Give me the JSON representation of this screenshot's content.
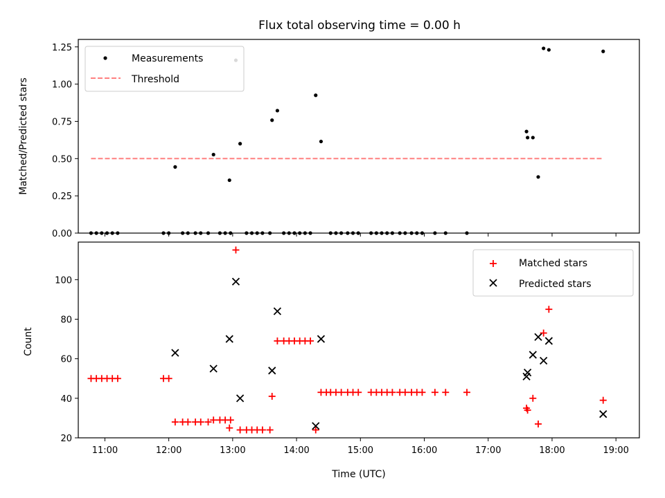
{
  "chart_data": [
    {
      "type": "scatter",
      "title": "Flux total observing time = 0.00 h",
      "xlabel": "",
      "ylabel": "Matched/Predicted stars",
      "x_ticklabels": [
        "11:00",
        "12:00",
        "13:00",
        "14:00",
        "15:00",
        "16:00",
        "17:00",
        "18:00",
        "19:00"
      ],
      "xlim": [
        "10:35",
        "19:22"
      ],
      "ylim": [
        0,
        1.3
      ],
      "y_ticks": [
        0.0,
        0.25,
        0.5,
        0.75,
        1.0,
        1.25
      ],
      "y_ticklabels": [
        "0.00",
        "0.25",
        "0.50",
        "0.75",
        "1.00",
        "1.25"
      ],
      "legend": "top-left",
      "series": [
        {
          "name": "Measurements",
          "color": "#000000",
          "marker": "dot",
          "points": [
            [
              "10:47",
              0
            ],
            [
              "10:52",
              0
            ],
            [
              "10:57",
              0
            ],
            [
              "11:02",
              0
            ],
            [
              "11:07",
              0
            ],
            [
              "11:12",
              0
            ],
            [
              "11:55",
              0
            ],
            [
              "12:00",
              0
            ],
            [
              "12:06",
              0.444
            ],
            [
              "12:13",
              0
            ],
            [
              "12:18",
              0
            ],
            [
              "12:25",
              0
            ],
            [
              "12:30",
              0
            ],
            [
              "12:37",
              0
            ],
            [
              "12:42",
              0.527
            ],
            [
              "12:48",
              0
            ],
            [
              "12:53",
              0
            ],
            [
              "12:58",
              0
            ],
            [
              "12:57",
              0.355
            ],
            [
              "13:03",
              1.16
            ],
            [
              "13:07",
              0.6
            ],
            [
              "13:13",
              0
            ],
            [
              "13:18",
              0
            ],
            [
              "13:23",
              0
            ],
            [
              "13:28",
              0
            ],
            [
              "13:35",
              0
            ],
            [
              "13:37",
              0.758
            ],
            [
              "13:42",
              0.822
            ],
            [
              "13:48",
              0
            ],
            [
              "13:53",
              0
            ],
            [
              "13:58",
              0
            ],
            [
              "14:03",
              0
            ],
            [
              "14:08",
              0
            ],
            [
              "14:13",
              0
            ],
            [
              "14:18",
              0.925
            ],
            [
              "14:23",
              0.615
            ],
            [
              "14:32",
              0
            ],
            [
              "14:37",
              0
            ],
            [
              "14:42",
              0
            ],
            [
              "14:48",
              0
            ],
            [
              "14:53",
              0
            ],
            [
              "14:58",
              0
            ],
            [
              "15:10",
              0
            ],
            [
              "15:15",
              0
            ],
            [
              "15:20",
              0
            ],
            [
              "15:25",
              0
            ],
            [
              "15:30",
              0
            ],
            [
              "15:37",
              0
            ],
            [
              "15:42",
              0
            ],
            [
              "15:48",
              0
            ],
            [
              "15:53",
              0
            ],
            [
              "15:58",
              0
            ],
            [
              "16:10",
              0
            ],
            [
              "16:20",
              0
            ],
            [
              "16:40",
              0
            ],
            [
              "17:36",
              0.682
            ],
            [
              "17:37",
              0.641
            ],
            [
              "17:42",
              0.641
            ],
            [
              "17:47",
              0.377
            ],
            [
              "17:52",
              1.24
            ],
            [
              "17:57",
              1.23
            ],
            [
              "18:48",
              1.22
            ]
          ]
        },
        {
          "name": "Threshold",
          "color": "#ff8080",
          "style": "dashed",
          "x": [
            "10:47",
            "18:48"
          ],
          "values": [
            0.5,
            0.5
          ]
        }
      ]
    },
    {
      "type": "scatter",
      "title": "",
      "xlabel": "Time (UTC)",
      "ylabel": "Count",
      "x_ticklabels": [
        "11:00",
        "12:00",
        "13:00",
        "14:00",
        "15:00",
        "16:00",
        "17:00",
        "18:00",
        "19:00"
      ],
      "xlim": [
        "10:35",
        "19:22"
      ],
      "ylim": [
        20,
        119
      ],
      "y_ticks": [
        20,
        40,
        60,
        80,
        100
      ],
      "y_ticklabels": [
        "20",
        "40",
        "60",
        "80",
        "100"
      ],
      "legend": "top-right",
      "series": [
        {
          "name": "Matched stars",
          "color": "#ff0000",
          "marker": "plus",
          "points": [
            [
              "10:47",
              50
            ],
            [
              "10:52",
              50
            ],
            [
              "10:57",
              50
            ],
            [
              "11:02",
              50
            ],
            [
              "11:07",
              50
            ],
            [
              "11:12",
              50
            ],
            [
              "11:55",
              50
            ],
            [
              "12:00",
              50
            ],
            [
              "12:06",
              28
            ],
            [
              "12:13",
              28
            ],
            [
              "12:18",
              28
            ],
            [
              "12:25",
              28
            ],
            [
              "12:30",
              28
            ],
            [
              "12:37",
              28
            ],
            [
              "12:42",
              29
            ],
            [
              "12:48",
              29
            ],
            [
              "12:53",
              29
            ],
            [
              "12:58",
              29
            ],
            [
              "12:57",
              25
            ],
            [
              "13:03",
              115
            ],
            [
              "13:07",
              24
            ],
            [
              "13:13",
              24
            ],
            [
              "13:18",
              24
            ],
            [
              "13:23",
              24
            ],
            [
              "13:28",
              24
            ],
            [
              "13:35",
              24
            ],
            [
              "13:37",
              41
            ],
            [
              "13:42",
              69
            ],
            [
              "13:48",
              69
            ],
            [
              "13:53",
              69
            ],
            [
              "13:58",
              69
            ],
            [
              "14:03",
              69
            ],
            [
              "14:08",
              69
            ],
            [
              "14:13",
              69
            ],
            [
              "14:18",
              24
            ],
            [
              "14:23",
              43
            ],
            [
              "14:28",
              43
            ],
            [
              "14:32",
              43
            ],
            [
              "14:37",
              43
            ],
            [
              "14:42",
              43
            ],
            [
              "14:48",
              43
            ],
            [
              "14:53",
              43
            ],
            [
              "14:58",
              43
            ],
            [
              "15:10",
              43
            ],
            [
              "15:15",
              43
            ],
            [
              "15:20",
              43
            ],
            [
              "15:25",
              43
            ],
            [
              "15:30",
              43
            ],
            [
              "15:37",
              43
            ],
            [
              "15:42",
              43
            ],
            [
              "15:48",
              43
            ],
            [
              "15:53",
              43
            ],
            [
              "15:58",
              43
            ],
            [
              "16:10",
              43
            ],
            [
              "16:20",
              43
            ],
            [
              "16:40",
              43
            ],
            [
              "17:36",
              35
            ],
            [
              "17:37",
              34
            ],
            [
              "17:42",
              40
            ],
            [
              "17:47",
              27
            ],
            [
              "17:52",
              73
            ],
            [
              "17:57",
              85
            ],
            [
              "18:48",
              39
            ]
          ]
        },
        {
          "name": "Predicted stars",
          "color": "#000000",
          "marker": "x",
          "points": [
            [
              "12:06",
              63
            ],
            [
              "12:42",
              55
            ],
            [
              "12:57",
              70
            ],
            [
              "13:03",
              99
            ],
            [
              "13:07",
              40
            ],
            [
              "13:37",
              54
            ],
            [
              "13:42",
              84
            ],
            [
              "14:18",
              26
            ],
            [
              "14:23",
              70
            ],
            [
              "17:36",
              51
            ],
            [
              "17:37",
              53
            ],
            [
              "17:42",
              62
            ],
            [
              "17:47",
              71
            ],
            [
              "17:52",
              59
            ],
            [
              "17:57",
              69
            ],
            [
              "18:48",
              32
            ]
          ]
        }
      ]
    }
  ]
}
